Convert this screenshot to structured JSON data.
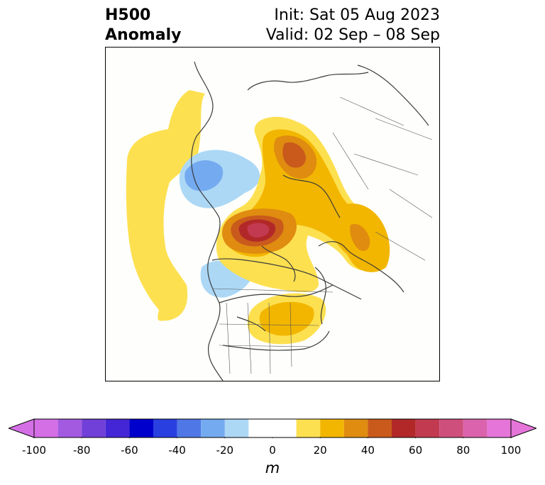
{
  "title": {
    "left_line1": "H500",
    "left_line2": "Anomaly",
    "right_line1": "Init: Sat 05 Aug 2023",
    "right_line2": "Valid: 02 Sep – 08 Sep"
  },
  "colorbar": {
    "unit": "m",
    "tick_labels": [
      "-100",
      "-80",
      "-60",
      "-40",
      "-20",
      "0",
      "20",
      "40",
      "60",
      "80",
      "100"
    ],
    "bins": [
      {
        "from": -100,
        "to": -90,
        "color": "#d46fe6"
      },
      {
        "from": -90,
        "to": -80,
        "color": "#a35ae0"
      },
      {
        "from": -80,
        "to": -70,
        "color": "#7040d8"
      },
      {
        "from": -70,
        "to": -60,
        "color": "#4526d6"
      },
      {
        "from": -60,
        "to": -50,
        "color": "#0000cc"
      },
      {
        "from": -50,
        "to": -40,
        "color": "#2a3fe0"
      },
      {
        "from": -40,
        "to": -30,
        "color": "#4f78e6"
      },
      {
        "from": -30,
        "to": -20,
        "color": "#74aaf0"
      },
      {
        "from": -20,
        "to": -10,
        "color": "#acd8f6"
      },
      {
        "from": -10,
        "to": 10,
        "color": "#ffffff"
      },
      {
        "from": 10,
        "to": 20,
        "color": "#fde050"
      },
      {
        "from": 20,
        "to": 30,
        "color": "#f2b600"
      },
      {
        "from": 30,
        "to": 40,
        "color": "#df8c10"
      },
      {
        "from": 40,
        "to": 50,
        "color": "#c95a1c"
      },
      {
        "from": 50,
        "to": 60,
        "color": "#b22828"
      },
      {
        "from": 60,
        "to": 70,
        "color": "#c23a50"
      },
      {
        "from": 70,
        "to": 80,
        "color": "#cf4f7c"
      },
      {
        "from": 80,
        "to": 90,
        "color": "#db63ad"
      },
      {
        "from": 90,
        "to": 100,
        "color": "#e575d8"
      }
    ],
    "extend_min_color": "#d46fe6",
    "extend_max_color": "#e575d8"
  }
}
